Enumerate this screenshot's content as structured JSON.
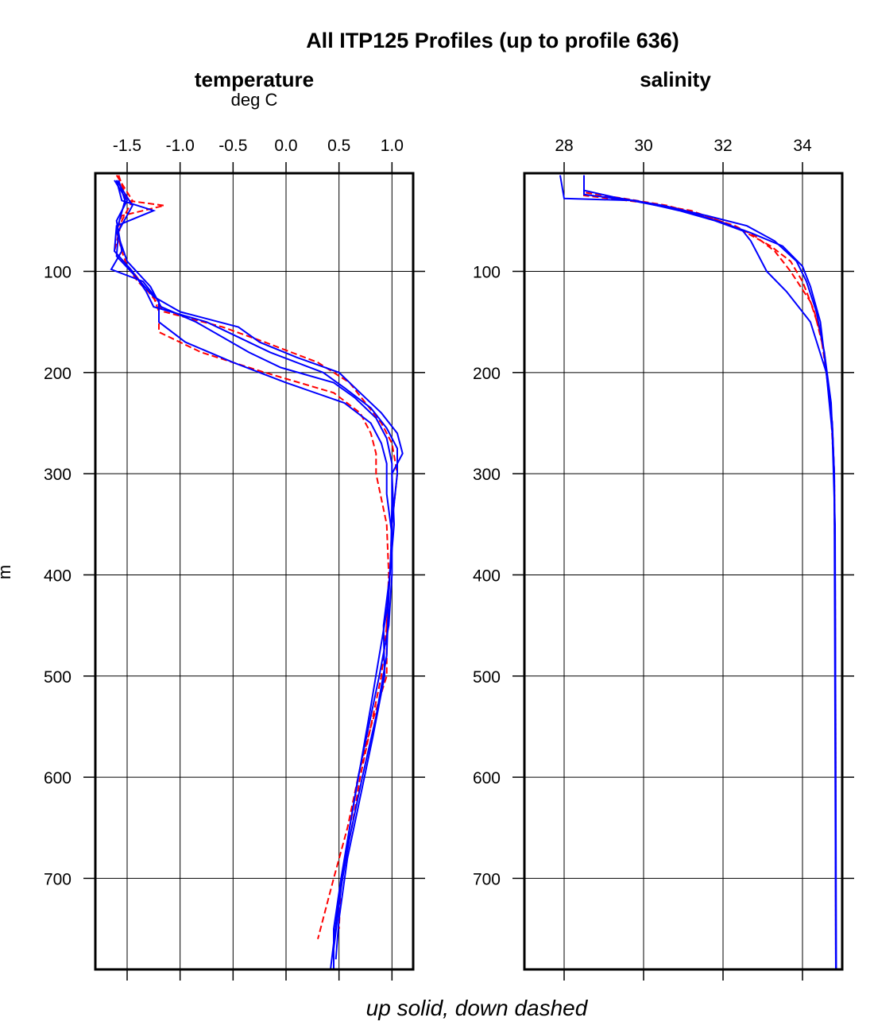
{
  "title": "All ITP125 Profiles (up to profile 636)",
  "footer": "up solid, down dashed",
  "ylabel": "m",
  "colors": {
    "up": "#0000ff",
    "down": "#ff0000",
    "axis": "#000000"
  },
  "chart_data": [
    {
      "type": "line",
      "title": "temperature",
      "subtitle": "deg C",
      "xlim": [
        -1.8,
        1.2
      ],
      "ylim": [
        790,
        3
      ],
      "y_reversed": true,
      "grid": true,
      "xticks": [
        -1.5,
        -1.0,
        -0.5,
        0.0,
        0.5,
        1.0
      ],
      "xtick_labels": [
        "-1.5",
        "-1.0",
        "-0.5",
        "0.0",
        "0.5",
        "1.0"
      ],
      "yticks": [
        100,
        200,
        300,
        400,
        500,
        600,
        700
      ],
      "ytick_labels": [
        "100",
        "200",
        "300",
        "400",
        "500",
        "600",
        "700"
      ],
      "series": [
        {
          "style": "down",
          "depth": [
            5,
            30,
            35,
            45,
            60,
            80,
            95,
            110,
            125,
            140,
            160,
            180,
            200,
            220,
            240,
            260,
            280,
            300,
            350,
            400,
            450,
            500,
            550,
            600,
            650,
            700,
            760
          ],
          "values": [
            -1.58,
            -1.5,
            -1.15,
            -1.55,
            -1.6,
            -1.55,
            -1.5,
            -1.4,
            -1.25,
            -1.2,
            -1.2,
            -0.8,
            -0.2,
            0.45,
            0.7,
            0.8,
            0.85,
            0.85,
            0.95,
            0.97,
            0.95,
            0.95,
            0.8,
            0.68,
            0.58,
            0.45,
            0.3
          ]
        },
        {
          "style": "down",
          "depth": [
            5,
            30,
            50,
            80,
            100,
            120,
            140,
            155,
            170,
            190,
            210,
            230,
            250,
            270,
            300,
            350,
            400,
            450,
            500,
            550,
            600,
            650,
            700,
            750
          ],
          "values": [
            -1.6,
            -1.45,
            -1.55,
            -1.62,
            -1.45,
            -1.3,
            -1.15,
            -0.6,
            -0.2,
            0.3,
            0.6,
            0.75,
            0.9,
            1.0,
            1.05,
            1.0,
            0.98,
            0.95,
            0.9,
            0.8,
            0.7,
            0.62,
            0.52,
            0.5
          ]
        },
        {
          "style": "up",
          "depth": [
            10,
            30,
            40,
            55,
            80,
            100,
            120,
            135,
            150,
            165,
            180,
            200,
            215,
            235,
            255,
            275,
            300,
            350,
            400,
            450,
            500,
            550,
            600,
            650,
            700,
            750,
            790
          ],
          "values": [
            -1.6,
            -1.55,
            -1.25,
            -1.6,
            -1.62,
            -1.45,
            -1.32,
            -1.25,
            -0.75,
            -0.45,
            -0.15,
            0.35,
            0.55,
            0.8,
            0.95,
            1.05,
            1.05,
            1.0,
            1.0,
            0.97,
            0.88,
            0.78,
            0.68,
            0.6,
            0.52,
            0.45,
            0.45
          ]
        },
        {
          "style": "up",
          "depth": [
            10,
            30,
            50,
            80,
            98,
            110,
            130,
            150,
            170,
            190,
            210,
            230,
            250,
            270,
            290,
            320,
            360,
            420,
            480,
            540,
            600,
            660,
            720,
            790
          ],
          "values": [
            -1.62,
            -1.5,
            -1.6,
            -1.55,
            -1.65,
            -1.35,
            -1.2,
            -1.2,
            -0.95,
            -0.5,
            0.0,
            0.55,
            0.8,
            0.9,
            0.95,
            0.95,
            1.0,
            0.97,
            0.95,
            0.85,
            0.72,
            0.6,
            0.5,
            0.42
          ]
        },
        {
          "style": "up",
          "depth": [
            10,
            35,
            60,
            85,
            105,
            125,
            140,
            155,
            170,
            185,
            200,
            220,
            240,
            260,
            280,
            300,
            350,
            400,
            450,
            500,
            560,
            620,
            680,
            740,
            780
          ],
          "values": [
            -1.6,
            -1.45,
            -1.58,
            -1.6,
            -1.42,
            -1.25,
            -1.0,
            -0.45,
            -0.25,
            0.1,
            0.5,
            0.7,
            0.9,
            1.05,
            1.1,
            1.0,
            1.02,
            0.98,
            0.92,
            0.93,
            0.82,
            0.7,
            0.58,
            0.5,
            0.47
          ]
        },
        {
          "style": "up",
          "depth": [
            10,
            30,
            60,
            90,
            115,
            135,
            150,
            165,
            180,
            195,
            210,
            225,
            245,
            265,
            290,
            330,
            380,
            430,
            480,
            530,
            590,
            650,
            710,
            770
          ],
          "values": [
            -1.58,
            -1.52,
            -1.6,
            -1.5,
            -1.28,
            -1.18,
            -0.85,
            -0.6,
            -0.35,
            -0.05,
            0.45,
            0.65,
            0.85,
            0.95,
            1.0,
            1.0,
            0.99,
            0.96,
            0.88,
            0.8,
            0.7,
            0.6,
            0.52,
            0.45
          ]
        }
      ]
    },
    {
      "type": "line",
      "title": "salinity",
      "xlim": [
        27,
        35
      ],
      "ylim": [
        790,
        3
      ],
      "y_reversed": true,
      "grid": true,
      "xticks": [
        28,
        30,
        32,
        34
      ],
      "xtick_labels": [
        "28",
        "30",
        "32",
        "34"
      ],
      "yticks": [
        100,
        200,
        300,
        400,
        500,
        600,
        700
      ],
      "ytick_labels": [
        "100",
        "200",
        "300",
        "400",
        "500",
        "600",
        "700"
      ],
      "series": [
        {
          "style": "down",
          "depth": [
            5,
            22,
            28,
            35,
            45,
            55,
            65,
            80,
            100,
            130,
            160,
            200,
            250,
            300,
            400,
            500,
            790
          ],
          "values": [
            28.5,
            28.5,
            29.5,
            30.6,
            31.5,
            32.3,
            32.8,
            33.3,
            33.7,
            34.2,
            34.45,
            34.6,
            34.75,
            34.8,
            34.82,
            34.83,
            34.84
          ]
        },
        {
          "style": "down",
          "depth": [
            5,
            25,
            32,
            40,
            50,
            60,
            75,
            90,
            110,
            140,
            180,
            230,
            300,
            500,
            790
          ],
          "values": [
            28.5,
            28.5,
            30.0,
            31.2,
            31.9,
            32.5,
            33.2,
            33.7,
            34.0,
            34.3,
            34.55,
            34.7,
            34.8,
            34.83,
            34.84
          ]
        },
        {
          "style": "up",
          "depth": [
            5,
            28,
            30,
            40,
            50,
            60,
            70,
            85,
            100,
            120,
            150,
            200,
            250,
            300,
            400,
            790
          ],
          "values": [
            27.9,
            28.0,
            29.8,
            30.9,
            31.8,
            32.5,
            32.7,
            32.9,
            33.1,
            33.6,
            34.2,
            34.6,
            34.75,
            34.8,
            34.82,
            34.84
          ]
        },
        {
          "style": "up",
          "depth": [
            5,
            20,
            27,
            35,
            45,
            55,
            70,
            90,
            110,
            140,
            180,
            230,
            300,
            790
          ],
          "values": [
            28.5,
            28.5,
            29.3,
            30.5,
            31.6,
            32.6,
            33.3,
            33.85,
            34.1,
            34.35,
            34.55,
            34.72,
            34.8,
            34.84
          ]
        },
        {
          "style": "up",
          "depth": [
            5,
            24,
            30,
            40,
            52,
            62,
            75,
            95,
            115,
            150,
            200,
            260,
            350,
            790
          ],
          "values": [
            28.5,
            28.5,
            29.7,
            31.0,
            32.0,
            32.7,
            33.5,
            34.0,
            34.2,
            34.45,
            34.6,
            34.75,
            34.82,
            34.85
          ]
        }
      ]
    }
  ]
}
